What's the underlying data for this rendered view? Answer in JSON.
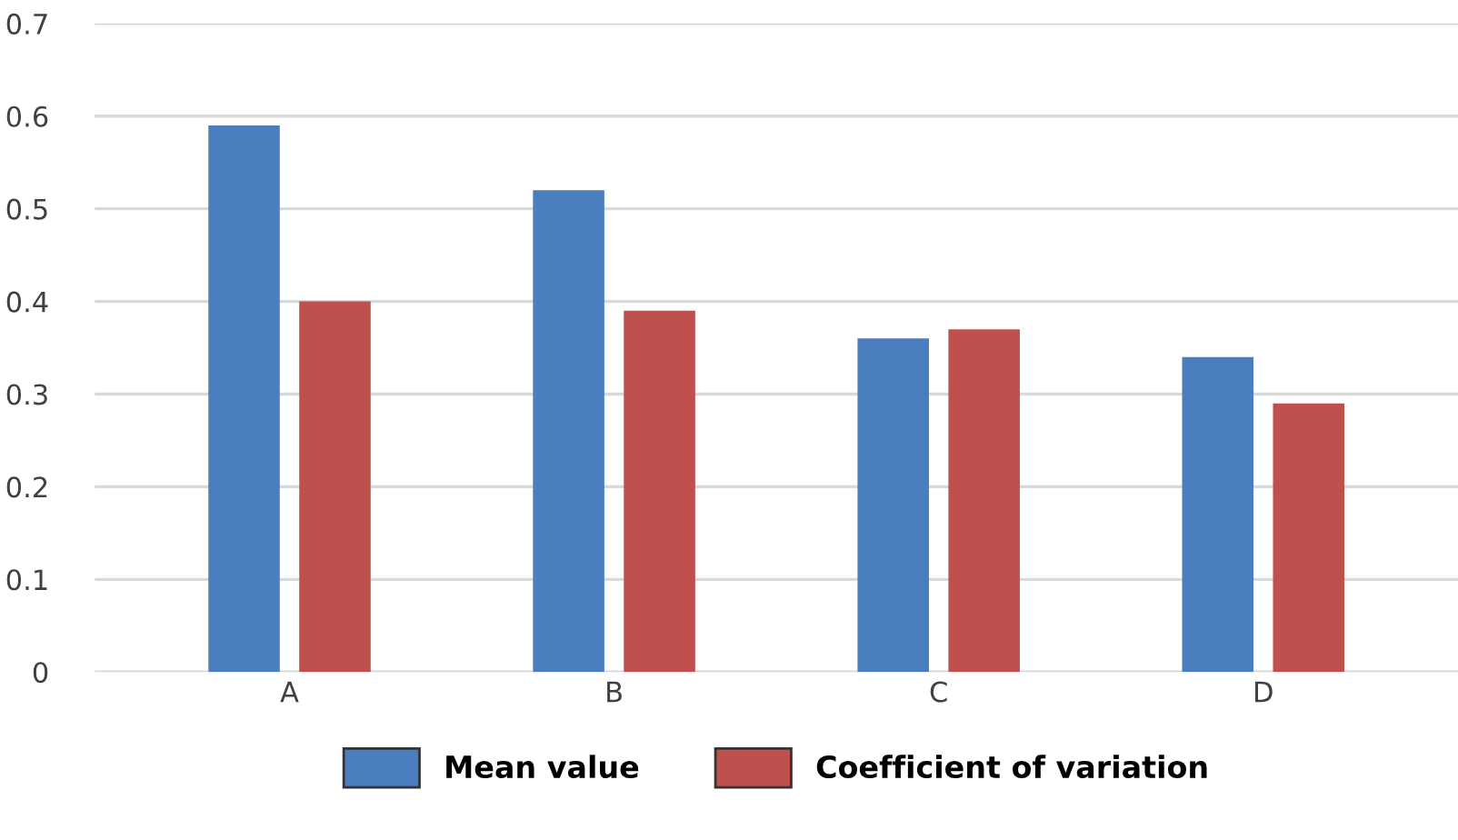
{
  "chart_data": {
    "type": "bar",
    "categories": [
      "A",
      "B",
      "C",
      "D"
    ],
    "series": [
      {
        "name": "Mean value",
        "color": "#4a7ebf",
        "values": [
          0.59,
          0.52,
          0.36,
          0.34
        ]
      },
      {
        "name": "Coefficient of variation",
        "color": "#c0504d",
        "values": [
          0.4,
          0.39,
          0.37,
          0.29
        ]
      }
    ],
    "ylim": [
      0,
      0.7
    ],
    "yticks": [
      {
        "value": 0,
        "label": "0"
      },
      0.1,
      0.2,
      0.3,
      0.4,
      0.5,
      0.6,
      0.7
    ],
    "grid": "y",
    "legend": "bottom"
  }
}
